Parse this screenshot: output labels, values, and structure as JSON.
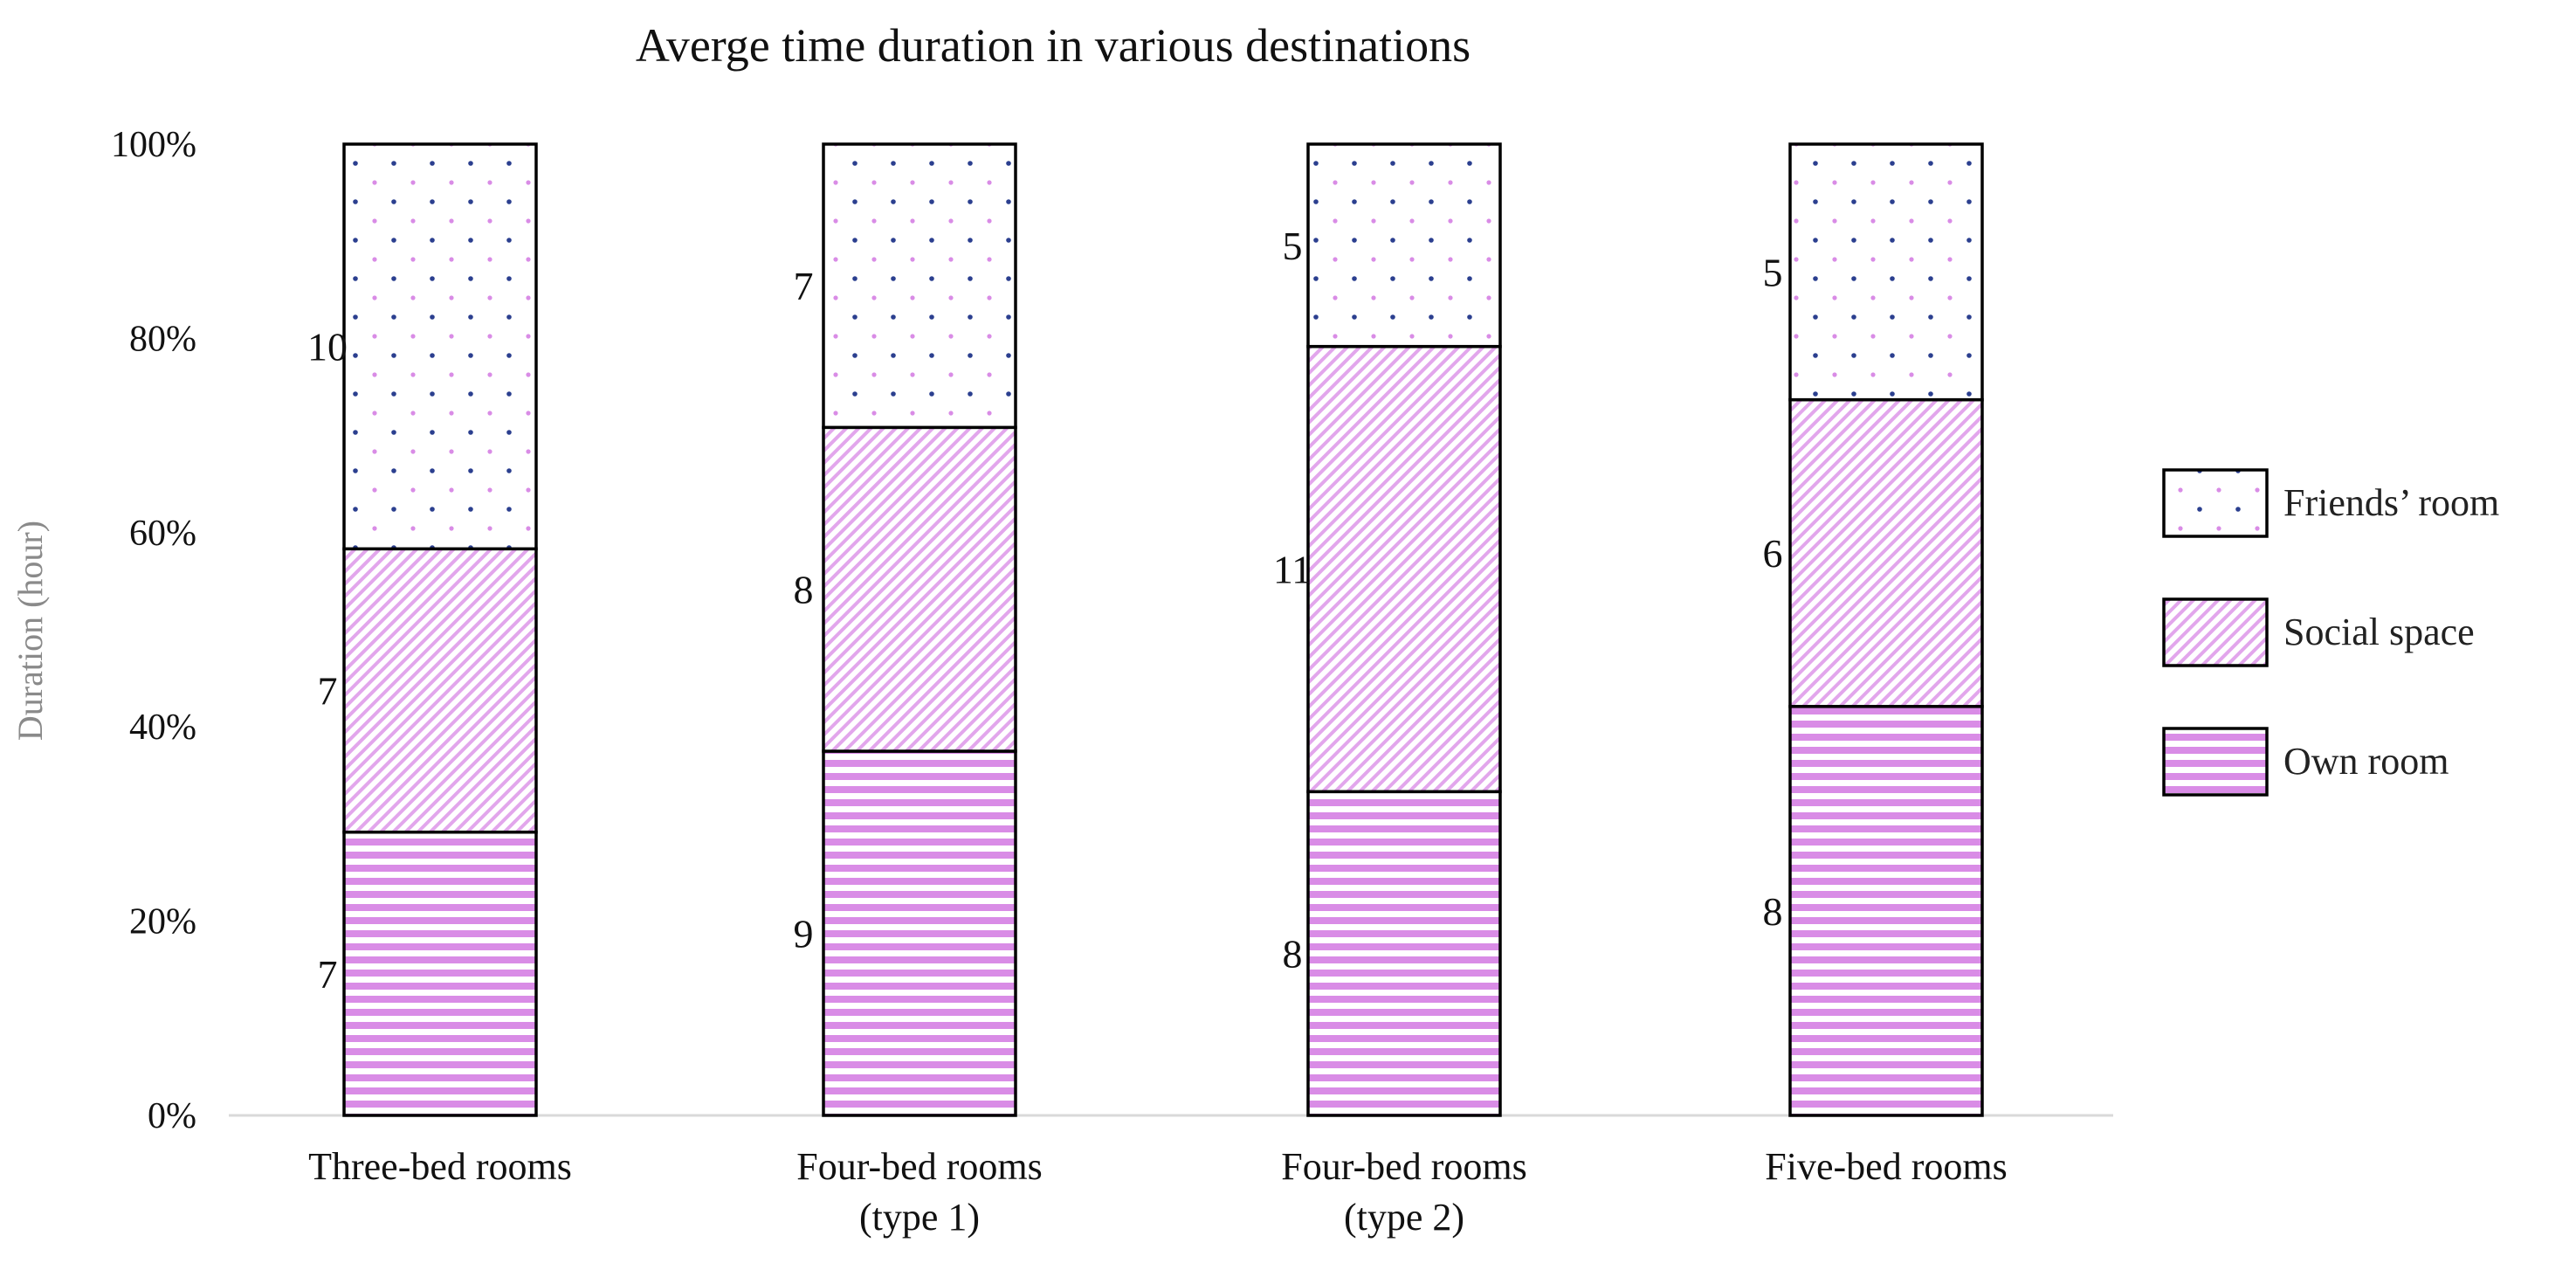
{
  "chart_data": {
    "type": "bar",
    "stacked": "percent",
    "title": "Averge time duration in various destinations",
    "ylabel": "Duration (hour)",
    "xlabel": "",
    "yticks": [
      "0%",
      "20%",
      "40%",
      "60%",
      "80%",
      "100%"
    ],
    "ylim": [
      0,
      100
    ],
    "categories": [
      [
        "Three-bed rooms"
      ],
      [
        "Four-bed rooms",
        "(type 1)"
      ],
      [
        "Four-bed rooms",
        "(type 2)"
      ],
      [
        "Five-bed rooms"
      ]
    ],
    "series": [
      {
        "name": "Own room",
        "values": [
          7,
          9,
          8,
          8
        ],
        "pattern": "horizontal-stripes"
      },
      {
        "name": "Social space",
        "values": [
          7,
          8,
          11,
          6
        ],
        "pattern": "diagonal-hatch"
      },
      {
        "name": "Friends’ room",
        "values": [
          10,
          7,
          5,
          5
        ],
        "pattern": "dots"
      }
    ],
    "legend": {
      "placement": "right",
      "order": [
        "Friends’ room",
        "Social space",
        "Own room"
      ]
    },
    "grid": false,
    "colors": {
      "stripe": "#d98ce6",
      "dot": "#2b3f8f",
      "dot_alt": "#d98ce6",
      "bar_edge": "#000000",
      "axis": "#d9d9d9"
    }
  }
}
